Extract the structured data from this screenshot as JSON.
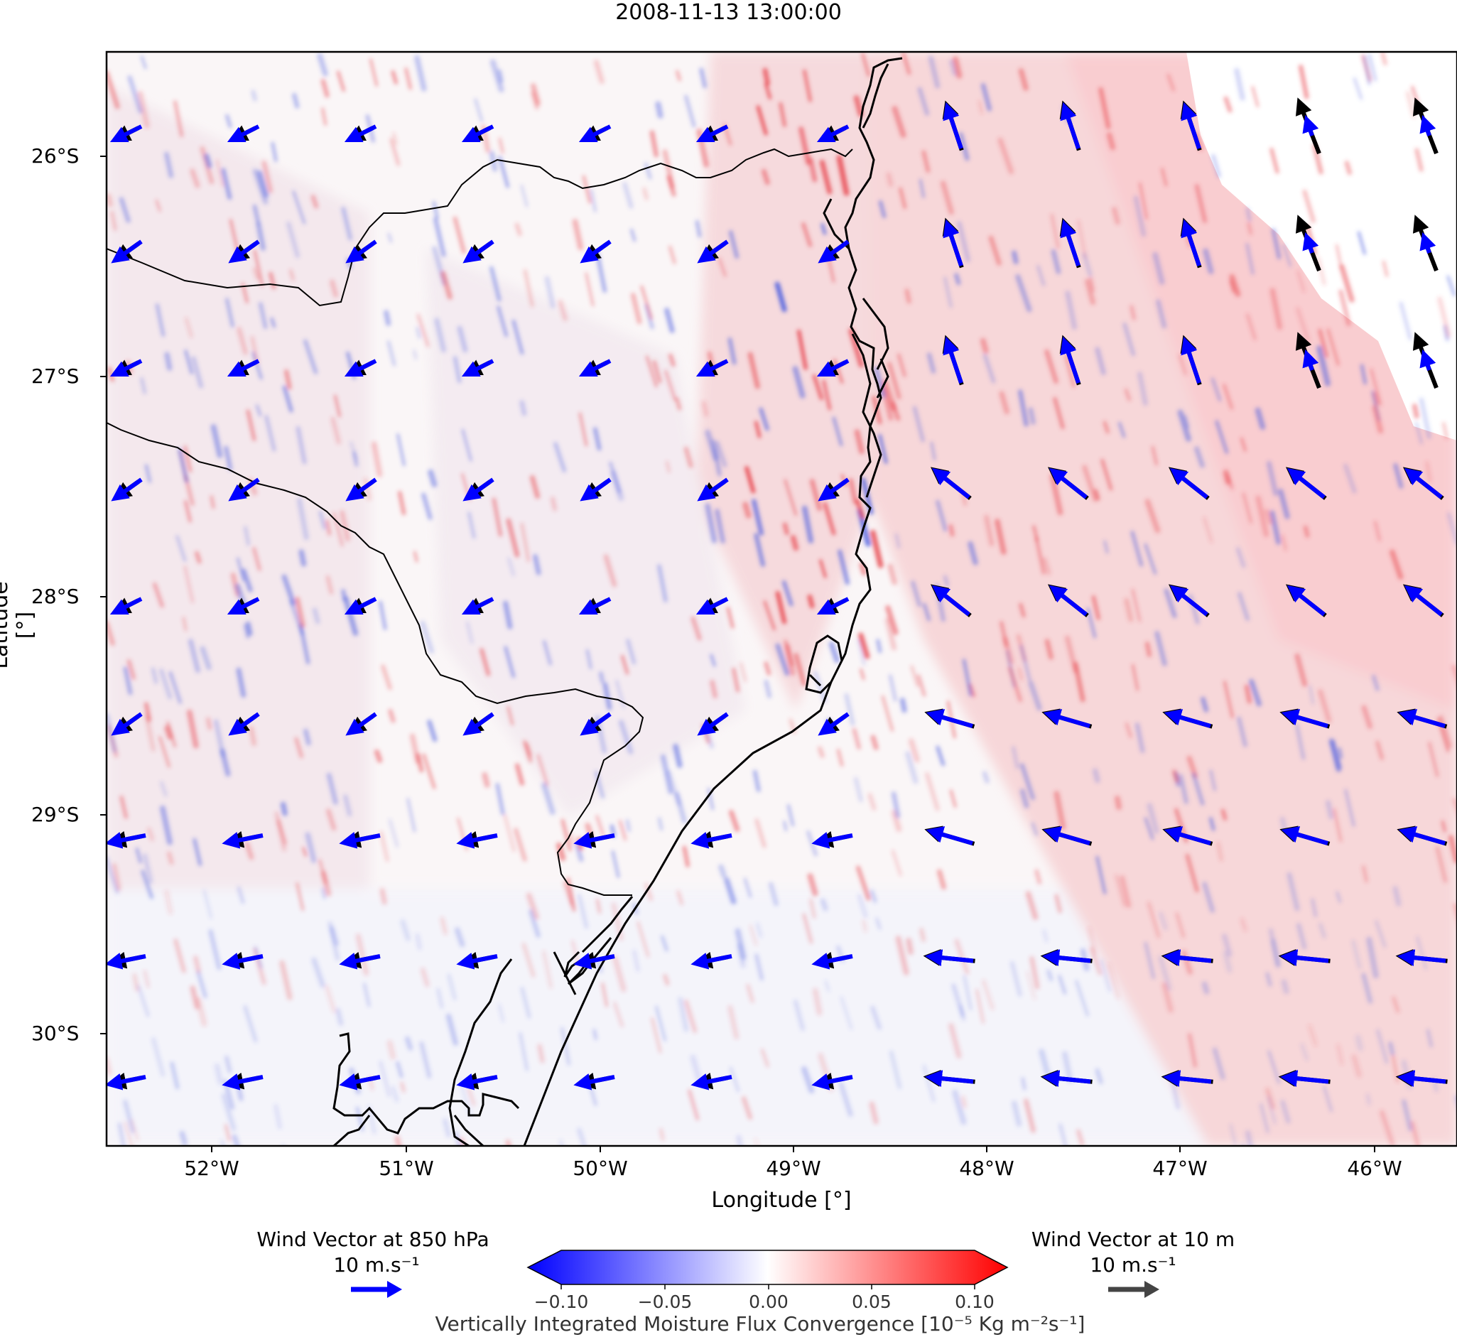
{
  "title": "2008-11-13 13:00:00",
  "axes": {
    "xlabel": "Longitude [°]",
    "ylabel": "Latitude [°]",
    "xticks": [
      "52°W",
      "51°W",
      "50°W",
      "49°W",
      "48°W",
      "47°W",
      "46°W"
    ],
    "yticks": [
      "26°S",
      "27°S",
      "28°S",
      "29°S",
      "30°S"
    ]
  },
  "legend": {
    "wind850_label": "Wind Vector at 850 hPa",
    "wind850_scale": "10 m.s⁻¹",
    "wind850_color": "#0000ff",
    "wind10_label": "Wind Vector at 10 m",
    "wind10_scale": "10 m.s⁻¹",
    "wind10_color": "#444444"
  },
  "colorbar": {
    "label": "Vertically Integrated Moisture Flux Convergence [10⁻⁵ Kg m⁻²s⁻¹]",
    "ticks": [
      "−0.10",
      "−0.05",
      "0.00",
      "0.05",
      "0.10"
    ],
    "min_color": "#0000ff",
    "mid_color": "#ffffff",
    "max_color": "#ff0000"
  },
  "map": {
    "extent_lon": [
      -52.5,
      -45.5
    ],
    "extent_lat": [
      -30.5,
      -25.5
    ],
    "field_colors": {
      "convergence": "#e8424a",
      "divergence": "#4d5fe0"
    }
  }
}
